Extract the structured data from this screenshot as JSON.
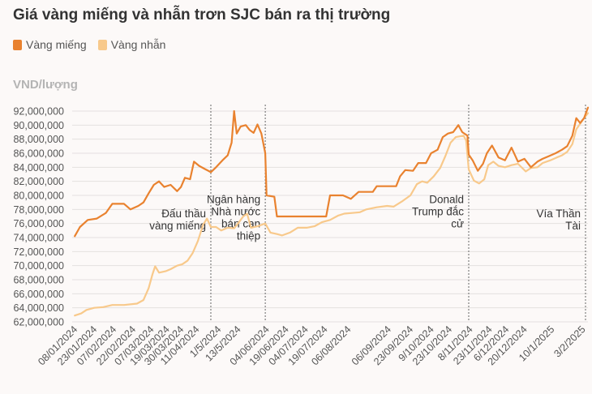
{
  "title": "Giá vàng miếng và nhẫn trơn SJC bán ra thị trường",
  "unit_label": "VND/lượng",
  "colors": {
    "mieng": "#e9822f",
    "nhan": "#f8c98b",
    "grid": "#e4e0df",
    "text": "#555555",
    "event": "#666666"
  },
  "chart_data": {
    "type": "line",
    "title": "Giá vàng miếng và nhẫn trơn SJC bán ra thị trường",
    "ylabel": "VND/lượng",
    "ylim": [
      62000000,
      92000000
    ],
    "yticks": [
      "62,000,000",
      "64,000,000",
      "66,000,000",
      "68,000,000",
      "70,000,000",
      "72,000,000",
      "74,000,000",
      "76,000,000",
      "78,000,000",
      "80,000,000",
      "82,000,000",
      "84,000,000",
      "86,000,000",
      "88,000,000",
      "90,000,000",
      "92,000,000"
    ],
    "x_range": [
      "2024-01-06",
      "2025-02-07"
    ],
    "xticks": [
      "08/01/2024",
      "23/01/2024",
      "07/02/2024",
      "22/02/2024",
      "07/03/2024",
      "19/03/2024",
      "30/03/2024",
      "11/04/2024",
      "1/5/2024",
      "13/5/2024",
      "04/06/2024",
      "19/06/2024",
      "04/07/2024",
      "19/07/2024",
      "06/08/2024",
      "06/09/2024",
      "23/09/2024",
      "9/10/2024",
      "23/10/2024",
      "8/11/2024",
      "23/11/2024",
      "6/12/2024",
      "20/12/2024",
      "10/1/2025",
      "3/2/2025"
    ],
    "series": [
      {
        "name": "Vàng miếng",
        "points": [
          [
            "2024-01-08",
            74200000
          ],
          [
            "2024-01-12",
            75500000
          ],
          [
            "2024-01-18",
            76500000
          ],
          [
            "2024-01-25",
            76700000
          ],
          [
            "2024-02-01",
            77500000
          ],
          [
            "2024-02-06",
            78800000
          ],
          [
            "2024-02-15",
            78800000
          ],
          [
            "2024-02-20",
            78000000
          ],
          [
            "2024-02-26",
            78500000
          ],
          [
            "2024-03-01",
            79000000
          ],
          [
            "2024-03-05",
            80300000
          ],
          [
            "2024-03-09",
            81500000
          ],
          [
            "2024-03-13",
            82000000
          ],
          [
            "2024-03-17",
            81200000
          ],
          [
            "2024-03-22",
            81500000
          ],
          [
            "2024-03-27",
            80600000
          ],
          [
            "2024-03-30",
            81200000
          ],
          [
            "2024-04-02",
            82500000
          ],
          [
            "2024-04-06",
            82300000
          ],
          [
            "2024-04-09",
            84800000
          ],
          [
            "2024-04-13",
            84200000
          ],
          [
            "2024-04-17",
            83800000
          ],
          [
            "2024-04-22",
            83300000
          ],
          [
            "2024-04-26",
            84000000
          ],
          [
            "2024-05-01",
            85000000
          ],
          [
            "2024-05-05",
            85700000
          ],
          [
            "2024-05-08",
            87500000
          ],
          [
            "2024-05-10",
            92000000
          ],
          [
            "2024-05-12",
            88800000
          ],
          [
            "2024-05-15",
            89800000
          ],
          [
            "2024-05-19",
            90000000
          ],
          [
            "2024-05-22",
            89300000
          ],
          [
            "2024-05-25",
            88900000
          ],
          [
            "2024-05-28",
            90100000
          ],
          [
            "2024-05-31",
            88800000
          ],
          [
            "2024-06-03",
            86000000
          ],
          [
            "2024-06-04",
            80000000
          ],
          [
            "2024-06-10",
            79800000
          ],
          [
            "2024-06-12",
            77000000
          ],
          [
            "2024-06-20",
            77000000
          ],
          [
            "2024-07-05",
            77000000
          ],
          [
            "2024-07-20",
            77000000
          ],
          [
            "2024-07-23",
            80000000
          ],
          [
            "2024-08-02",
            80000000
          ],
          [
            "2024-08-08",
            79500000
          ],
          [
            "2024-08-14",
            80500000
          ],
          [
            "2024-08-25",
            80500000
          ],
          [
            "2024-08-28",
            81300000
          ],
          [
            "2024-09-12",
            81300000
          ],
          [
            "2024-09-15",
            82700000
          ],
          [
            "2024-09-19",
            83600000
          ],
          [
            "2024-09-25",
            83500000
          ],
          [
            "2024-09-29",
            84600000
          ],
          [
            "2024-10-05",
            84600000
          ],
          [
            "2024-10-09",
            86000000
          ],
          [
            "2024-10-14",
            86500000
          ],
          [
            "2024-10-18",
            88300000
          ],
          [
            "2024-10-22",
            88800000
          ],
          [
            "2024-10-26",
            89000000
          ],
          [
            "2024-10-30",
            90000000
          ],
          [
            "2024-11-02",
            89000000
          ],
          [
            "2024-11-06",
            88500000
          ],
          [
            "2024-11-07",
            85800000
          ],
          [
            "2024-11-10",
            85000000
          ],
          [
            "2024-11-14",
            83500000
          ],
          [
            "2024-11-18",
            84500000
          ],
          [
            "2024-11-21",
            86000000
          ],
          [
            "2024-11-25",
            87100000
          ],
          [
            "2024-11-30",
            85400000
          ],
          [
            "2024-12-05",
            85000000
          ],
          [
            "2024-12-10",
            86800000
          ],
          [
            "2024-12-15",
            84800000
          ],
          [
            "2024-12-20",
            85200000
          ],
          [
            "2024-12-25",
            84000000
          ],
          [
            "2024-12-30",
            84800000
          ],
          [
            "2025-01-03",
            85200000
          ],
          [
            "2025-01-08",
            85600000
          ],
          [
            "2025-01-13",
            86000000
          ],
          [
            "2025-01-18",
            86500000
          ],
          [
            "2025-01-22",
            87000000
          ],
          [
            "2025-01-26",
            88500000
          ],
          [
            "2025-01-29",
            91000000
          ],
          [
            "2025-02-01",
            90300000
          ],
          [
            "2025-02-04",
            91000000
          ],
          [
            "2025-02-07",
            92500000
          ]
        ]
      },
      {
        "name": "Vàng nhẫn",
        "points": [
          [
            "2024-01-08",
            62900000
          ],
          [
            "2024-01-13",
            63200000
          ],
          [
            "2024-01-17",
            63700000
          ],
          [
            "2024-01-23",
            64000000
          ],
          [
            "2024-01-30",
            64100000
          ],
          [
            "2024-02-06",
            64400000
          ],
          [
            "2024-02-15",
            64400000
          ],
          [
            "2024-02-25",
            64600000
          ],
          [
            "2024-03-01",
            65100000
          ],
          [
            "2024-03-05",
            66800000
          ],
          [
            "2024-03-08",
            68800000
          ],
          [
            "2024-03-10",
            69900000
          ],
          [
            "2024-03-13",
            69000000
          ],
          [
            "2024-03-18",
            69200000
          ],
          [
            "2024-03-22",
            69500000
          ],
          [
            "2024-03-27",
            70000000
          ],
          [
            "2024-03-31",
            70200000
          ],
          [
            "2024-04-04",
            70700000
          ],
          [
            "2024-04-08",
            71800000
          ],
          [
            "2024-04-12",
            73500000
          ],
          [
            "2024-04-16",
            75800000
          ],
          [
            "2024-04-19",
            76700000
          ],
          [
            "2024-04-22",
            75500000
          ],
          [
            "2024-04-26",
            75500000
          ],
          [
            "2024-04-30",
            75000000
          ],
          [
            "2024-05-05",
            75400000
          ],
          [
            "2024-05-10",
            75300000
          ],
          [
            "2024-05-13",
            76000000
          ],
          [
            "2024-05-17",
            77000000
          ],
          [
            "2024-05-20",
            77400000
          ],
          [
            "2024-05-23",
            75400000
          ],
          [
            "2024-05-28",
            75600000
          ],
          [
            "2024-06-03",
            76000000
          ],
          [
            "2024-06-07",
            74700000
          ],
          [
            "2024-06-12",
            74500000
          ],
          [
            "2024-06-16",
            74300000
          ],
          [
            "2024-06-22",
            74700000
          ],
          [
            "2024-06-28",
            75400000
          ],
          [
            "2024-07-05",
            75400000
          ],
          [
            "2024-07-11",
            75600000
          ],
          [
            "2024-07-17",
            76200000
          ],
          [
            "2024-07-23",
            76500000
          ],
          [
            "2024-07-29",
            77100000
          ],
          [
            "2024-08-03",
            77400000
          ],
          [
            "2024-08-09",
            77500000
          ],
          [
            "2024-08-15",
            77600000
          ],
          [
            "2024-08-20",
            78000000
          ],
          [
            "2024-08-28",
            78300000
          ],
          [
            "2024-09-05",
            78500000
          ],
          [
            "2024-09-10",
            78400000
          ],
          [
            "2024-09-17",
            79200000
          ],
          [
            "2024-09-23",
            80000000
          ],
          [
            "2024-09-28",
            81600000
          ],
          [
            "2024-10-02",
            82000000
          ],
          [
            "2024-10-06",
            81800000
          ],
          [
            "2024-10-11",
            82700000
          ],
          [
            "2024-10-16",
            83900000
          ],
          [
            "2024-10-20",
            85600000
          ],
          [
            "2024-10-24",
            87500000
          ],
          [
            "2024-10-28",
            88300000
          ],
          [
            "2024-11-03",
            88500000
          ],
          [
            "2024-11-05",
            87800000
          ],
          [
            "2024-11-07",
            83700000
          ],
          [
            "2024-11-11",
            82100000
          ],
          [
            "2024-11-15",
            81700000
          ],
          [
            "2024-11-19",
            82300000
          ],
          [
            "2024-11-22",
            84300000
          ],
          [
            "2024-11-26",
            84800000
          ],
          [
            "2024-11-30",
            84200000
          ],
          [
            "2024-12-05",
            84000000
          ],
          [
            "2024-12-10",
            84300000
          ],
          [
            "2024-12-15",
            84500000
          ],
          [
            "2024-12-21",
            83400000
          ],
          [
            "2024-12-25",
            83900000
          ],
          [
            "2024-12-30",
            84000000
          ],
          [
            "2025-01-03",
            84600000
          ],
          [
            "2025-01-09",
            85000000
          ],
          [
            "2025-01-14",
            85400000
          ],
          [
            "2025-01-18",
            85700000
          ],
          [
            "2025-01-22",
            86200000
          ],
          [
            "2025-01-26",
            87300000
          ],
          [
            "2025-01-29",
            89400000
          ],
          [
            "2025-02-01",
            90200000
          ],
          [
            "2025-02-04",
            91000000
          ],
          [
            "2025-02-07",
            91700000
          ]
        ]
      }
    ],
    "events": [
      {
        "date": "2024-04-22",
        "label": "Đấu thầu\nvàng miếng",
        "align": "right",
        "label_top": 78400000
      },
      {
        "date": "2024-06-03",
        "label": "Ngân hàng\nNhà nước\nbán can\nthiệp",
        "align": "right",
        "label_top": 80400000
      },
      {
        "date": "2024-11-07",
        "label": "Donald\nTrump đắc\ncử",
        "align": "right",
        "label_top": 80400000
      },
      {
        "date": "2025-02-07",
        "label": "Vía Thần\nTài",
        "align": "right",
        "label_top": 78400000
      }
    ],
    "grid": true,
    "legend": "top-left"
  }
}
